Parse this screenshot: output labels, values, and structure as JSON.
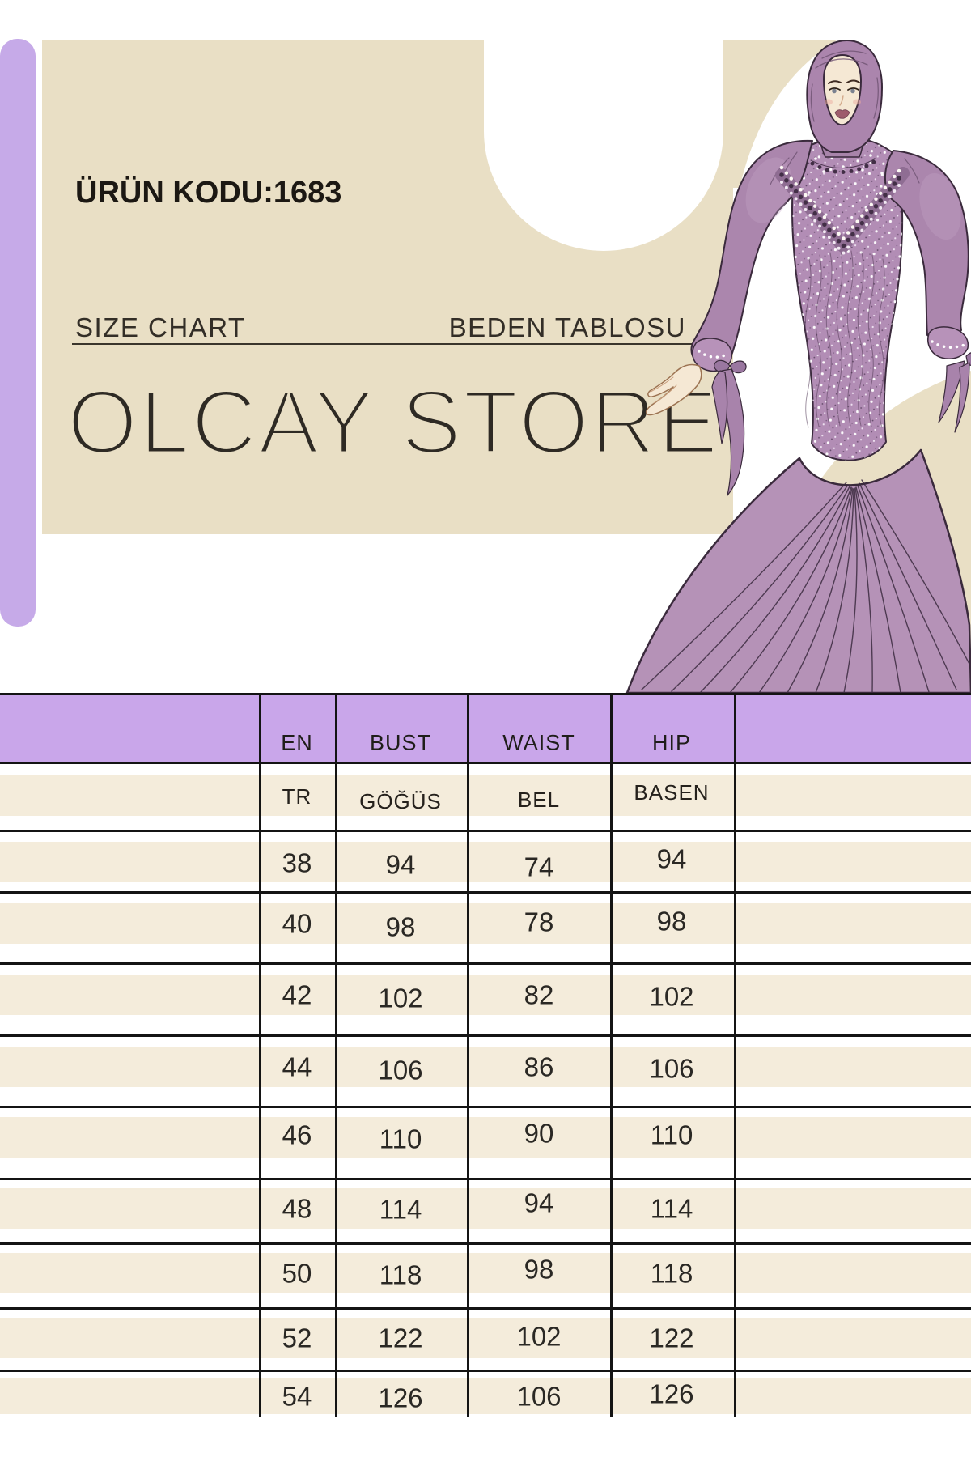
{
  "product": {
    "code": "ÜRÜN KODU:1683"
  },
  "hero": {
    "size_chart_label_en": "SIZE CHART",
    "size_chart_label_tr": "BEDEN TABLOSU",
    "store_name": "OLCAY STORE"
  },
  "illustration": {
    "description": "Fashion sketch of a woman in a mauve hijab and pearl-embellished long evening gown with puffed sleeves and pleated skirt"
  },
  "size_table": {
    "header_en": {
      "size": "EN",
      "bust": "BUST",
      "waist": "WAIST",
      "hip": "HIP"
    },
    "header_tr": {
      "size": "TR",
      "bust": "GÖĞÜS",
      "waist": "BEL",
      "hip": "BASEN"
    },
    "rows": [
      {
        "size": "38",
        "bust": "94",
        "waist": "74",
        "hip": "94"
      },
      {
        "size": "40",
        "bust": "98",
        "waist": "78",
        "hip": "98"
      },
      {
        "size": "42",
        "bust": "102",
        "waist": "82",
        "hip": "102"
      },
      {
        "size": "44",
        "bust": "106",
        "waist": "86",
        "hip": "106"
      },
      {
        "size": "46",
        "bust": "110",
        "waist": "90",
        "hip": "110"
      },
      {
        "size": "48",
        "bust": "114",
        "waist": "94",
        "hip": "114"
      },
      {
        "size": "50",
        "bust": "118",
        "waist": "98",
        "hip": "118"
      },
      {
        "size": "52",
        "bust": "122",
        "waist": "102",
        "hip": "122"
      },
      {
        "size": "54",
        "bust": "126",
        "waist": "106",
        "hip": "126"
      }
    ]
  },
  "colors": {
    "accent_purple": "#c9a6ea",
    "accent_purple_bar": "#c6aae8",
    "panel_beige": "#e9dfc5",
    "row_beige": "#f4ecdb",
    "line_black": "#141414",
    "dress_mauve": "#b28db5"
  }
}
